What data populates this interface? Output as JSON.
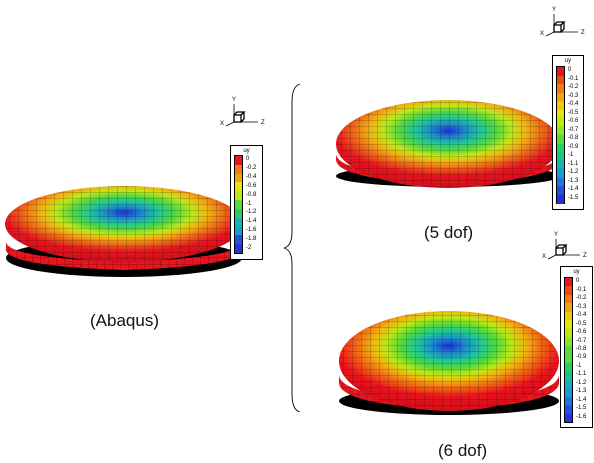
{
  "figure": {
    "captions": {
      "abaqus": "(Abaqus)",
      "dof5": "(5 dof)",
      "dof6": "(6 dof)"
    },
    "axes_labels": {
      "x": "X",
      "y": "Y",
      "z": "Z"
    },
    "colormap": [
      "#e8141e",
      "#ee4a18",
      "#f07a14",
      "#f0a312",
      "#efc610",
      "#e6e40e",
      "#bde817",
      "#8fe42a",
      "#55dc3e",
      "#27cf5c",
      "#18c38c",
      "#18b2b4",
      "#199ad0",
      "#1c78dc",
      "#2050e0",
      "#2a2fd6"
    ],
    "legends": [
      {
        "id": "abaqus",
        "title": "uy",
        "labels": [
          "0",
          "-0.2",
          "-0.4",
          "-0.6",
          "-0.8",
          "-1",
          "-1.2",
          "-1.4",
          "-1.6",
          "-1.8",
          "-2"
        ]
      },
      {
        "id": "dof5",
        "title": "uy",
        "labels": [
          "0",
          "-0.1",
          "-0.2",
          "-0.3",
          "-0.4",
          "-0.5",
          "-0.6",
          "-0.7",
          "-0.8",
          "-0.9",
          "-1",
          "-1.1",
          "-1.2",
          "-1.3",
          "-1.4",
          "-1.5"
        ]
      },
      {
        "id": "dof6",
        "title": "uy",
        "labels": [
          "0",
          "-0.1",
          "-0.2",
          "-0.3",
          "-0.4",
          "-0.5",
          "-0.6",
          "-0.7",
          "-0.8",
          "-0.9",
          "-1",
          "-1.1",
          "-1.2",
          "-1.3",
          "-1.4",
          "-1.5",
          "-1.6"
        ]
      }
    ]
  }
}
